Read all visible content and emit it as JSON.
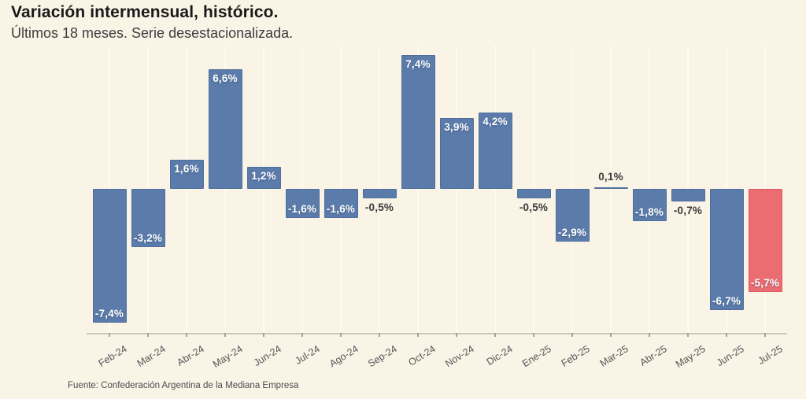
{
  "header": {
    "title": "Variación intermensual, histórico.",
    "subtitle": "Últimos 18 meses. Serie desestacionalizada."
  },
  "footer": {
    "source": "Fuente: Confederación Argentina de la Mediana Empresa"
  },
  "chart_data": {
    "type": "bar",
    "title": "Variación intermensual, histórico.",
    "subtitle": "Últimos 18 meses. Serie desestacionalizada.",
    "categories": [
      "Feb-24",
      "Mar-24",
      "Abr-24",
      "May-24",
      "Jun-24",
      "Jul-24",
      "Ago-24",
      "Sep-24",
      "Oct-24",
      "Nov-24",
      "Dic-24",
      "Ene-25",
      "Feb-25",
      "Mar-25",
      "Abr-25",
      "May-25",
      "Jun-25",
      "Jul-25"
    ],
    "values": [
      -7.4,
      -3.2,
      1.6,
      6.6,
      1.2,
      -1.6,
      -1.6,
      -0.5,
      7.4,
      3.9,
      4.2,
      -0.5,
      -2.9,
      0.1,
      -1.8,
      -0.7,
      -6.7,
      -5.7
    ],
    "value_labels": [
      "-7,4%",
      "-3,2%",
      "1,6%",
      "6,6%",
      "1,2%",
      "-1,6%",
      "-1,6%",
      "-0,5%",
      "7,4%",
      "3,9%",
      "4,2%",
      "-0,5%",
      "-2,9%",
      "0,1%",
      "-1,8%",
      "-0,7%",
      "-6,7%",
      "-5,7%"
    ],
    "unit": "%",
    "highlight_index": 17,
    "ylim": [
      -8,
      8
    ],
    "grid": "vertical gridline per category",
    "legend_position": "none",
    "xlabel": "",
    "ylabel": "",
    "colors": {
      "bar": "#5b7cab",
      "bar_border": "#4e6f9d",
      "highlight": "#eb6d72",
      "highlight_border": "#da5c64",
      "background": "#faf4e7",
      "gridline": "#fdfaf2",
      "label_inside": "#ffffff",
      "label_outside": "#3b3b3b",
      "axis_line": "#cdc8bb"
    }
  }
}
